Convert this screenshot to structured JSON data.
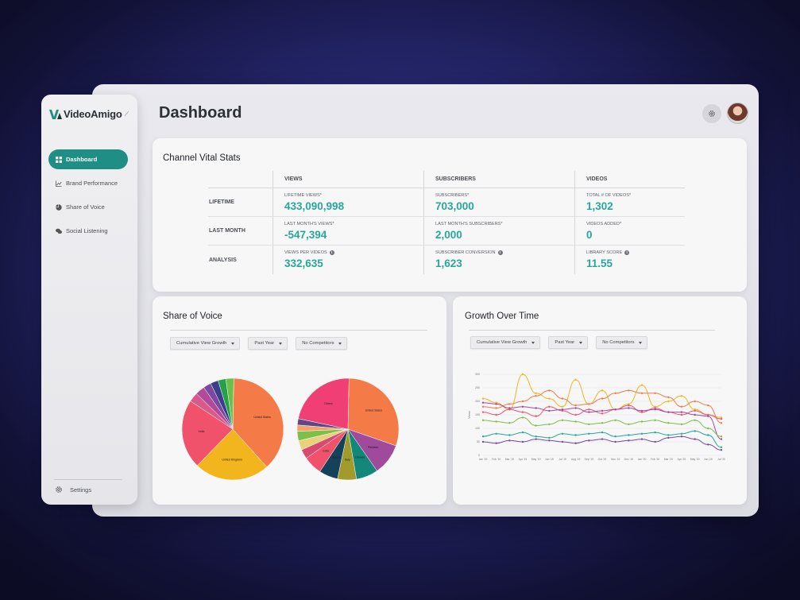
{
  "app": {
    "brand": "VideoAmigo",
    "page_title": "Dashboard"
  },
  "sidebar": {
    "items": [
      {
        "label": "Dashboard",
        "icon": "grid-icon",
        "active": true
      },
      {
        "label": "Brand Performance",
        "icon": "line-chart-icon",
        "active": false
      },
      {
        "label": "Share of Voice",
        "icon": "pie-chart-icon",
        "active": false
      },
      {
        "label": "Social Listening",
        "icon": "chat-bubbles-icon",
        "active": false
      }
    ],
    "settings_label": "Settings"
  },
  "stats": {
    "title": "Channel Vital Stats",
    "headers": [
      "VIEWS",
      "SUBSCRIBERS",
      "VIDEOS"
    ],
    "rows": [
      {
        "label": "LIFETIME",
        "cells": [
          {
            "label": "LIFETIME VIEWS*",
            "value": "433,090,998",
            "info": false
          },
          {
            "label": "SUBSCRIBERS*",
            "value": "703,000",
            "info": false
          },
          {
            "label": "TOTAL # OF VIDEOS*",
            "value": "1,302",
            "info": false
          }
        ]
      },
      {
        "label": "LAST MONTH",
        "cells": [
          {
            "label": "LAST MONTH'S VIEWS*",
            "value": "-547,394",
            "info": false
          },
          {
            "label": "LAST MONTH'S SUBSCRIBERS*",
            "value": "2,000",
            "info": false
          },
          {
            "label": "VIDEOS ADDED*",
            "value": "0",
            "info": false
          }
        ]
      },
      {
        "label": "ANALYSIS",
        "cells": [
          {
            "label": "VIEWS PER VIDEOS",
            "value": "332,635",
            "info": true
          },
          {
            "label": "SUBSCRIBER CONVERSION",
            "value": "1,623",
            "info": true
          },
          {
            "label": "LIBRARY SCORE",
            "value": "11.55",
            "info": true
          }
        ]
      }
    ]
  },
  "share_of_voice": {
    "title": "Share of Voice",
    "filters": [
      "Cumulative View Growth",
      "Past Year",
      "No Competitors"
    ]
  },
  "growth": {
    "title": "Growth Over Time",
    "filters": [
      "Cumulative View Growth",
      "Past Year",
      "No Competitors"
    ]
  },
  "chart_data": [
    {
      "type": "pie",
      "labels": [
        "United States",
        "United Kingdom",
        "India",
        "",
        "",
        "",
        "",
        "",
        ""
      ],
      "values": [
        38,
        24,
        22,
        3,
        3,
        2.5,
        2.5,
        2.5,
        2.5
      ],
      "colors": [
        "#f47b48",
        "#f2b51d",
        "#f0526b",
        "#d85a8a",
        "#b24a9a",
        "#7a4aa0",
        "#3b3f8a",
        "#27a04a",
        "#6cc04a"
      ]
    },
    {
      "type": "pie",
      "labels": [
        "United States",
        "Pakistan",
        "Canada",
        "Italy",
        "Japan",
        "India",
        "",
        "",
        "",
        "",
        "",
        "Others"
      ],
      "values": [
        30,
        10,
        7,
        6,
        6,
        6,
        3,
        3,
        3,
        2,
        2,
        22
      ],
      "colors": [
        "#f47b48",
        "#a04a9c",
        "#12877a",
        "#a29a2a",
        "#13425a",
        "#f0526b",
        "#d84a6e",
        "#e9d27a",
        "#7cc04a",
        "#f4a06a",
        "#5a4a8a",
        "#ef3f74"
      ]
    },
    {
      "type": "line",
      "categories": [
        "Jan '19",
        "Feb '19",
        "Mar '19",
        "Apr '19",
        "May '19",
        "Jun '19",
        "Jul '19",
        "Aug '19",
        "Sep '19",
        "Oct '19",
        "Nov '19",
        "Dec '19",
        "Jan '20",
        "Feb '20",
        "Mar '20",
        "Apr '20",
        "May '20",
        "Jun '20",
        "Jul '20"
      ],
      "yticks": [
        "0",
        "50",
        "100",
        "150",
        "200",
        "250",
        "300"
      ],
      "ylim": [
        0,
        300
      ],
      "ylabel": "Views",
      "series": [
        {
          "color": "#f2b51d",
          "values": [
            210,
            195,
            170,
            300,
            230,
            210,
            180,
            280,
            190,
            240,
            170,
            190,
            260,
            180,
            200,
            220,
            170,
            150,
            140
          ]
        },
        {
          "color": "#f47b48",
          "values": [
            180,
            175,
            190,
            200,
            220,
            240,
            210,
            185,
            190,
            210,
            230,
            240,
            230,
            230,
            215,
            180,
            200,
            185,
            120
          ]
        },
        {
          "color": "#f0526b",
          "values": [
            160,
            150,
            170,
            160,
            145,
            180,
            165,
            150,
            170,
            155,
            170,
            185,
            160,
            175,
            160,
            150,
            165,
            150,
            135
          ]
        },
        {
          "color": "#a04a9c",
          "values": [
            195,
            190,
            175,
            180,
            175,
            165,
            170,
            175,
            160,
            165,
            170,
            175,
            165,
            170,
            160,
            160,
            150,
            145,
            60
          ]
        },
        {
          "color": "#7cc04a",
          "values": [
            130,
            125,
            120,
            140,
            110,
            115,
            130,
            125,
            115,
            120,
            130,
            115,
            125,
            130,
            120,
            115,
            130,
            100,
            70
          ]
        },
        {
          "color": "#27a79b",
          "values": [
            70,
            80,
            75,
            85,
            70,
            65,
            80,
            75,
            80,
            85,
            70,
            75,
            80,
            85,
            75,
            80,
            90,
            75,
            30
          ]
        },
        {
          "color": "#7a4aa0",
          "values": [
            50,
            45,
            55,
            50,
            60,
            55,
            50,
            45,
            55,
            60,
            50,
            55,
            60,
            50,
            65,
            70,
            60,
            40,
            20
          ]
        }
      ]
    }
  ]
}
